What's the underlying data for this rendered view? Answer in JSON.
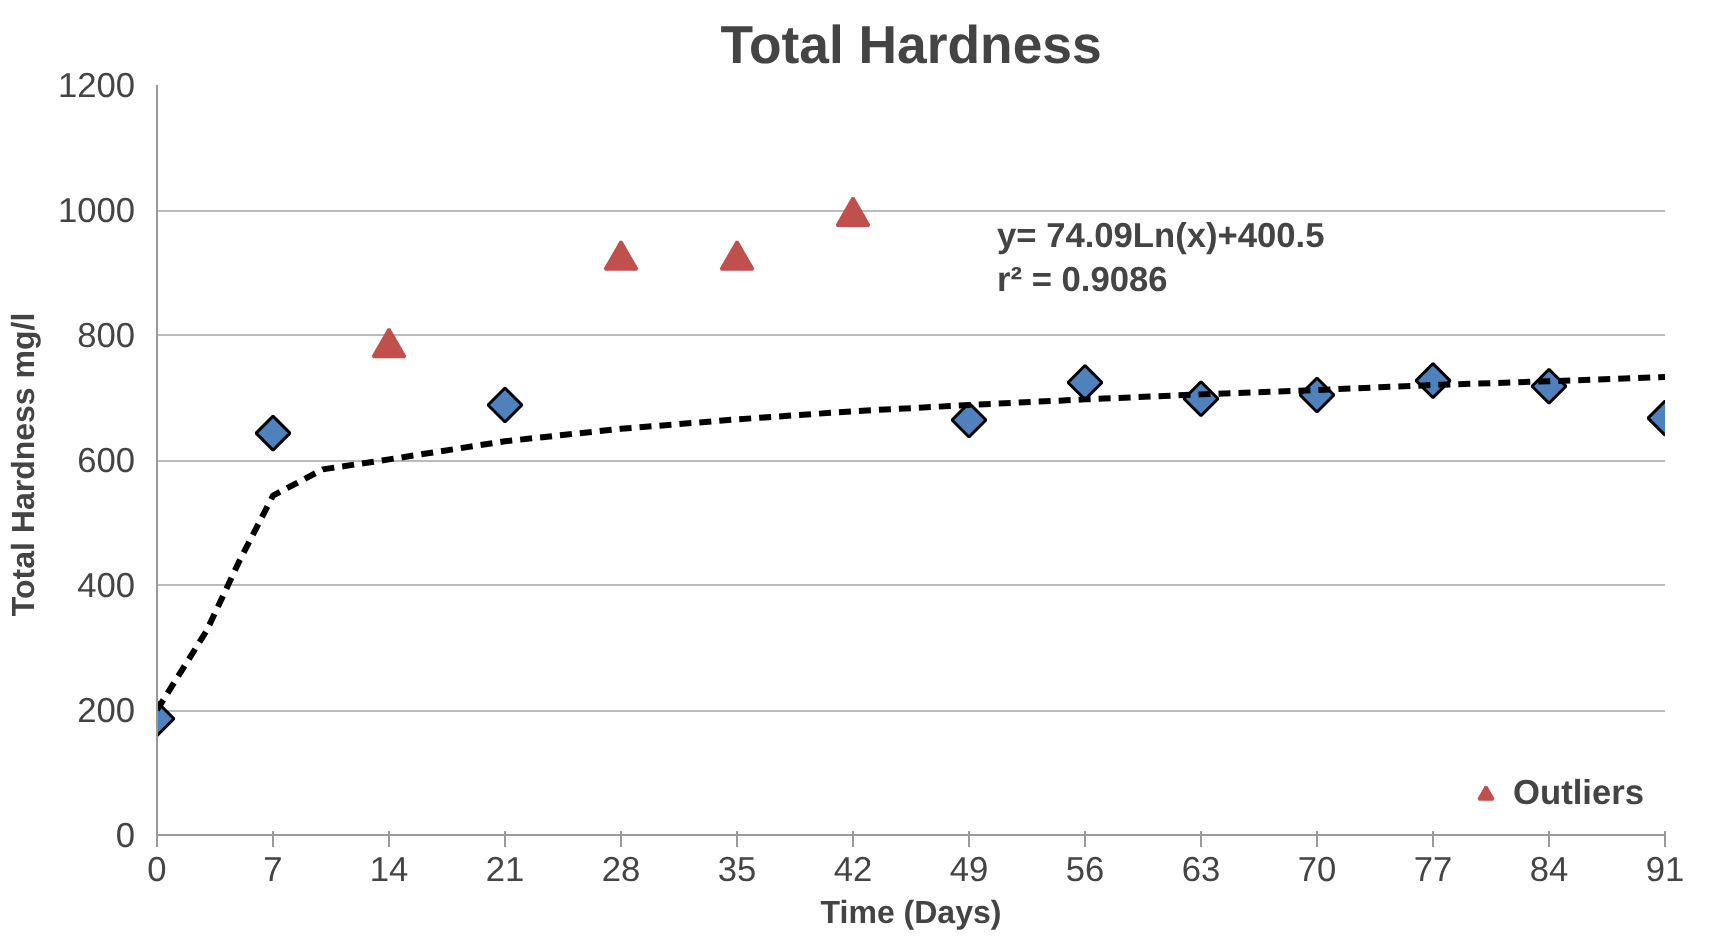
{
  "chart_data": {
    "type": "scatter",
    "title": "Total Hardness",
    "xlabel": "Time (Days)",
    "ylabel": "Total Hardness  mg/l",
    "x": [
      0,
      7,
      21,
      49,
      56,
      63,
      70,
      77,
      84,
      91
    ],
    "xlim": [
      0,
      91
    ],
    "xticks": [
      0,
      7,
      14,
      21,
      28,
      35,
      42,
      49,
      56,
      63,
      70,
      77,
      84,
      91
    ],
    "ylim": [
      0,
      1200
    ],
    "yticks": [
      0,
      200,
      400,
      600,
      800,
      1000,
      1200
    ],
    "grid": "y",
    "legend": "bottom right",
    "series": [
      {
        "color": "#4f81bd",
        "marker": "diamond",
        "values": [
          186,
          643,
          688,
          664,
          724,
          698,
          704,
          727,
          718,
          667
        ]
      },
      {
        "name": "Outliers",
        "color": "#c0504d",
        "marker": "triangle",
        "x": [
          14,
          28,
          35,
          42
        ],
        "values": [
          780,
          920,
          920,
          990
        ]
      },
      {
        "type": "line",
        "color": "#000000",
        "line_style": "dashed",
        "marker": "none",
        "x": [
          0,
          3,
          5,
          7,
          10,
          14,
          21,
          28,
          35,
          42,
          49,
          56,
          63,
          70,
          77,
          84,
          91
        ],
        "values": [
          200,
          327,
          440,
          543,
          585,
          601,
          630,
          650,
          665,
          678,
          688,
          697,
          705,
          712,
          720,
          726,
          733
        ]
      }
    ],
    "annotations": [
      "y= 74.09Ln(x)+400.5",
      "r² = 0.9086"
    ]
  }
}
